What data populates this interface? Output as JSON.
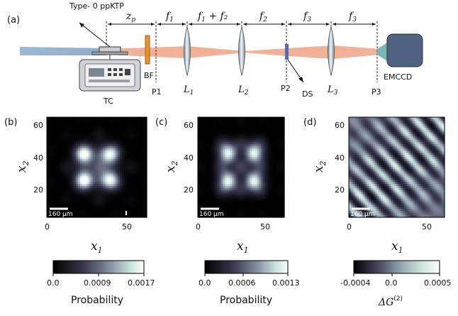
{
  "schematic": {
    "panel_label": "(a)",
    "crystal_label": "Type- 0 ppKTP",
    "controller_label": "TC",
    "filter_label": "BF",
    "detector_label": "EMCCD",
    "plane_labels": [
      "P1",
      "P2",
      "P3"
    ],
    "lens_labels": [
      "L",
      "L",
      "L"
    ],
    "lens_subscripts": [
      "1",
      "2",
      "3"
    ],
    "slit_label": "DS",
    "distance_labels": [
      {
        "main": "z",
        "sub": "p",
        "rest": ""
      },
      {
        "main": "f",
        "sub": "1",
        "rest": ""
      },
      {
        "main": "f",
        "sub": "1",
        "rest": " + f₂"
      },
      {
        "main": "f",
        "sub": "2",
        "rest": ""
      },
      {
        "main": "f",
        "sub": "3",
        "rest": ""
      },
      {
        "main": "f",
        "sub": "3",
        "rest": ""
      }
    ],
    "colors": {
      "pump": "#8faecb",
      "beam": "#f0a88e",
      "filter": "#e8922e",
      "camera": "#4f6282",
      "camera_cone": "#7fb3b7"
    }
  },
  "panels": [
    {
      "label": "(b)",
      "scale_bar": "160 μm",
      "colorbar_label": "Probability",
      "colorbar_ticks": [
        "0.0",
        "0.0009",
        "0.0017"
      ],
      "x_label": "x",
      "y_label": "x"
    },
    {
      "label": "(c)",
      "scale_bar": "160 μm",
      "colorbar_label": "Probability",
      "colorbar_ticks": [
        "0.0",
        "0.0006",
        "0.0013"
      ],
      "x_label": "x",
      "y_label": "x"
    },
    {
      "label": "(d)",
      "scale_bar": "160 μm",
      "colorbar_label": "ΔG",
      "colorbar_sup": "(2)",
      "colorbar_ticks": [
        "-0.0004",
        "0.0",
        "0.0005"
      ],
      "x_label": "x",
      "y_label": "x"
    }
  ],
  "chart_data": [
    {
      "type": "heatmap",
      "xlim": [
        0,
        62
      ],
      "ylim": [
        0,
        62
      ],
      "xticks": [
        "0",
        "50"
      ],
      "yticks": [
        "20",
        "40",
        "60"
      ],
      "colorbar_range": [
        0.0,
        0.0017
      ],
      "pattern": "2x2 bright lobes rotated 45 degrees with surrounding side-lobe grid"
    },
    {
      "type": "heatmap",
      "xlim": [
        0,
        62
      ],
      "ylim": [
        0,
        62
      ],
      "xticks": [
        "0",
        "50"
      ],
      "yticks": [
        "20",
        "40",
        "60"
      ],
      "colorbar_range": [
        0.0,
        0.0013
      ],
      "pattern": "axis-aligned 2x2 bright lobes with surrounding side-lobe grid"
    },
    {
      "type": "heatmap",
      "xlim": [
        0,
        62
      ],
      "ylim": [
        0,
        62
      ],
      "xticks": [
        "0",
        "50"
      ],
      "yticks": [
        "20",
        "40",
        "60"
      ],
      "colorbar_range": [
        -0.0004,
        0.0005
      ],
      "pattern": "diagonal striped difference pattern"
    }
  ]
}
